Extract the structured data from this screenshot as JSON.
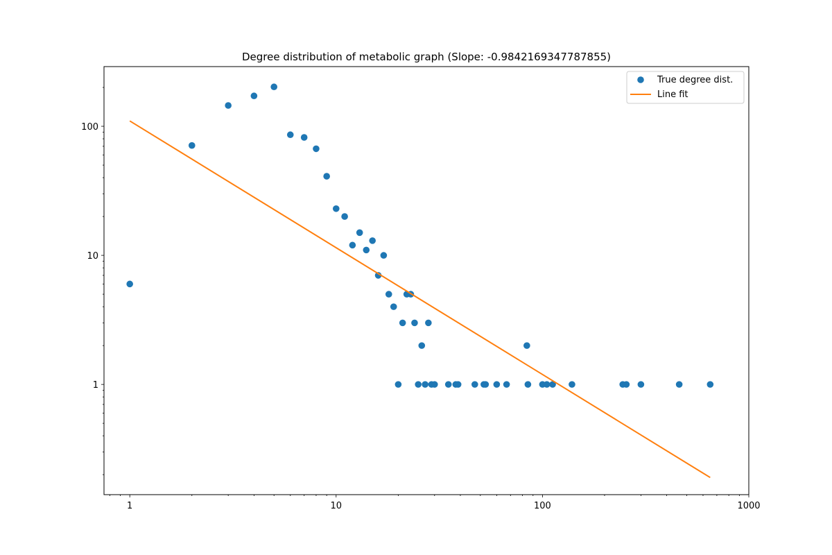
{
  "chart_data": {
    "type": "scatter",
    "title": "Degree distribution of metabolic graph (Slope: -0.9842169347787855)",
    "xlabel": "",
    "ylabel": "",
    "xscale": "log",
    "yscale": "log",
    "xlim": [
      0.75,
      1000
    ],
    "ylim": [
      0.14,
      290
    ],
    "x_ticks": [
      1,
      10,
      100,
      1000
    ],
    "x_tick_labels": [
      "1",
      "10",
      "100",
      "1000"
    ],
    "y_ticks": [
      1,
      10,
      100
    ],
    "y_tick_labels": [
      "1",
      "10",
      "100"
    ],
    "grid": false,
    "legend": {
      "position": "top-right",
      "entries": [
        "True degree dist.",
        "Line fit"
      ]
    },
    "series": [
      {
        "name": "True degree dist.",
        "type": "scatter",
        "color": "#1f77b4",
        "points": [
          [
            1,
            6
          ],
          [
            2,
            71
          ],
          [
            3,
            145
          ],
          [
            4,
            172
          ],
          [
            5,
            202
          ],
          [
            6,
            86
          ],
          [
            7,
            82
          ],
          [
            8,
            67
          ],
          [
            9,
            41
          ],
          [
            10,
            23
          ],
          [
            11,
            20
          ],
          [
            12,
            12
          ],
          [
            13,
            15
          ],
          [
            14,
            11
          ],
          [
            15,
            13
          ],
          [
            16,
            7
          ],
          [
            17,
            10
          ],
          [
            18,
            5
          ],
          [
            19,
            4
          ],
          [
            20,
            1
          ],
          [
            21,
            3
          ],
          [
            22,
            5
          ],
          [
            23,
            5
          ],
          [
            24,
            3
          ],
          [
            25,
            1
          ],
          [
            26,
            2
          ],
          [
            27,
            1
          ],
          [
            28,
            3
          ],
          [
            29,
            1
          ],
          [
            30,
            1
          ],
          [
            35,
            1
          ],
          [
            38,
            1
          ],
          [
            39,
            1
          ],
          [
            47,
            1
          ],
          [
            52,
            1
          ],
          [
            53,
            1
          ],
          [
            60,
            1
          ],
          [
            67,
            1
          ],
          [
            84,
            2
          ],
          [
            85,
            1
          ],
          [
            100,
            1
          ],
          [
            105,
            1
          ],
          [
            112,
            1
          ],
          [
            139,
            1
          ],
          [
            245,
            1
          ],
          [
            255,
            1
          ],
          [
            300,
            1
          ],
          [
            460,
            1
          ],
          [
            650,
            1
          ]
        ]
      },
      {
        "name": "Line fit",
        "type": "line",
        "color": "#ff7f0e",
        "points": [
          [
            1,
            110
          ],
          [
            650,
            0.19
          ]
        ]
      }
    ]
  }
}
